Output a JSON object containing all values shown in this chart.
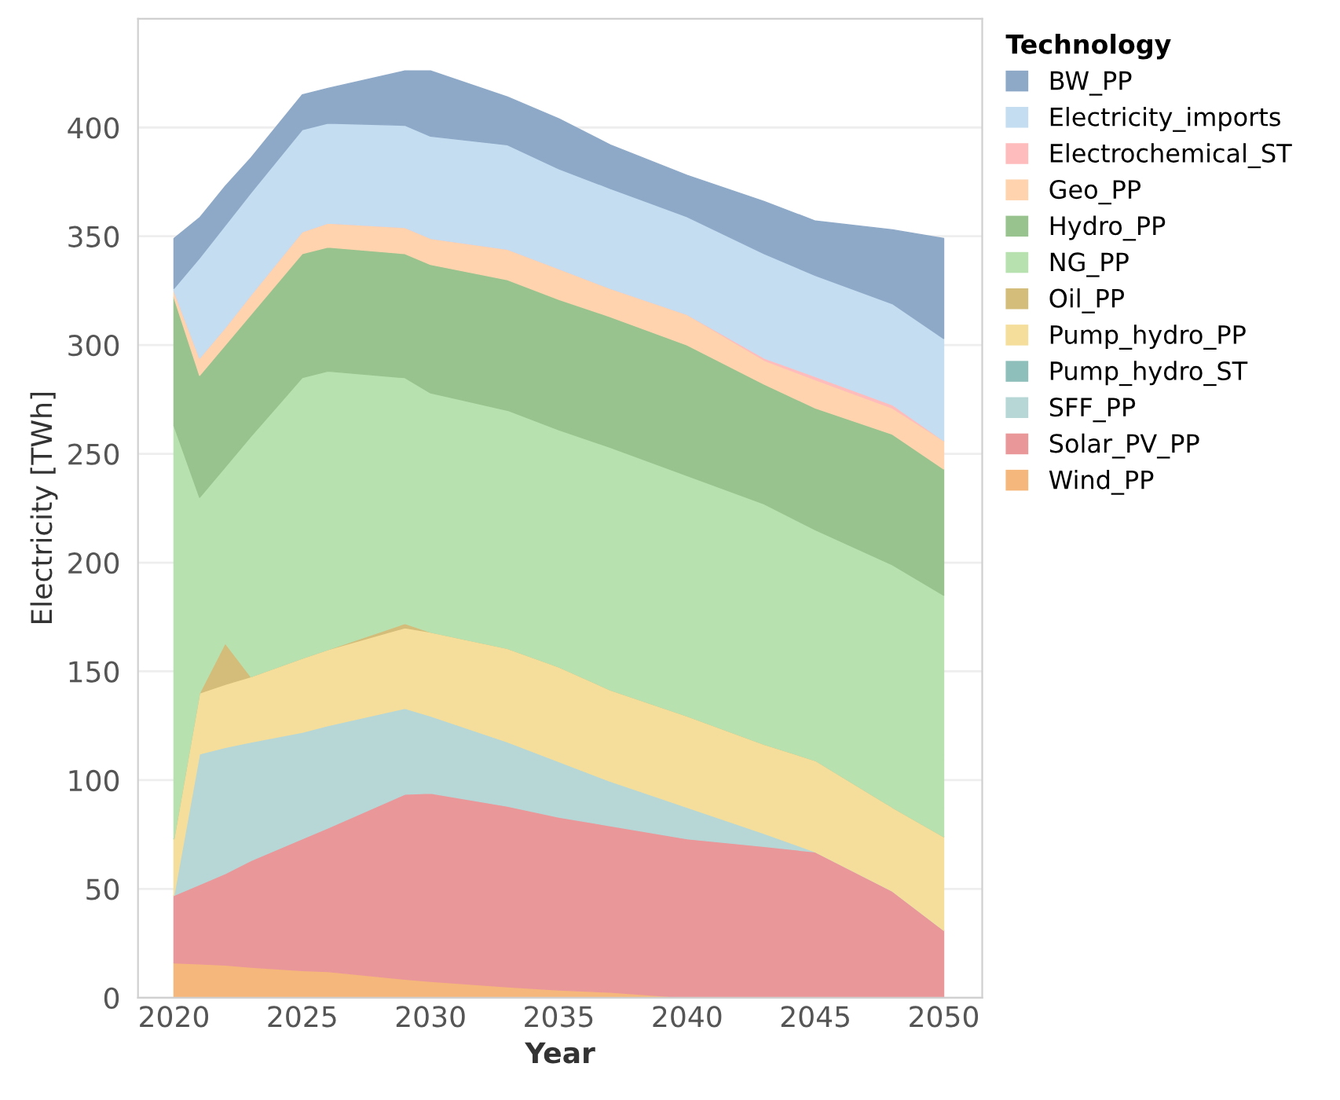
{
  "chart_data": {
    "type": "area",
    "stacked": true,
    "xlabel": "Year",
    "ylabel": "Electricity [TWh]",
    "legend_title": "Technology",
    "legend": "right",
    "grid": "y",
    "x": [
      2020,
      2021,
      2022,
      2023,
      2025,
      2026,
      2029,
      2030,
      2033,
      2035,
      2037,
      2040,
      2043,
      2045,
      2048,
      2050
    ],
    "xlim": [
      2018.6,
      2051.5
    ],
    "xticks": [
      2020,
      2025,
      2030,
      2035,
      2040,
      2045,
      2050
    ],
    "ylim": [
      0,
      450
    ],
    "yticks": [
      0,
      50,
      100,
      150,
      200,
      250,
      300,
      350,
      400
    ],
    "series": [
      {
        "name": "Wind_PP",
        "color": "#f5b77b",
        "values": [
          16,
          15.5,
          15,
          14,
          12.5,
          12,
          8.5,
          7.5,
          5,
          3.5,
          2.5,
          0,
          0,
          0,
          0,
          0
        ]
      },
      {
        "name": "Solar_PV_PP",
        "color": "#ea979a",
        "values": [
          31,
          36.5,
          42,
          49,
          60.5,
          66,
          85,
          86.5,
          83,
          79.5,
          76.5,
          73,
          69.5,
          67,
          49,
          31
        ]
      },
      {
        "name": "SFF_PP",
        "color": "#b6d7d6",
        "values": [
          0,
          60,
          58,
          54.5,
          49,
          47,
          39.5,
          35.5,
          29.5,
          25.5,
          20.5,
          14.5,
          6,
          0,
          0,
          0
        ]
      },
      {
        "name": "Pump_hydro_ST",
        "color": "#8fbfbb",
        "values": [
          null,
          null,
          null,
          null,
          null,
          null,
          null,
          null,
          null,
          null,
          null,
          null,
          null,
          null,
          null,
          null
        ]
      },
      {
        "name": "Pump_hydro_PP",
        "color": "#f5de9b",
        "values": [
          26,
          28,
          29,
          30,
          34,
          35,
          37,
          38.5,
          43,
          43.5,
          42,
          42,
          41,
          42,
          38.5,
          43
        ]
      },
      {
        "name": "Oil_PP",
        "color": "#d4bd7a",
        "values": [
          0,
          0,
          19,
          0,
          0,
          0,
          2,
          0,
          0,
          0,
          0,
          0,
          0,
          0,
          0,
          0
        ]
      },
      {
        "name": "NG_PP",
        "color": "#b8e1b0",
        "values": [
          190,
          90,
          81,
          110.5,
          129,
          128,
          113,
          110,
          109.5,
          109,
          111.5,
          110.5,
          110.5,
          106,
          111.5,
          111
        ]
      },
      {
        "name": "Hydro_PP",
        "color": "#98c38e",
        "values": [
          59,
          56,
          56,
          56,
          57,
          57,
          57,
          59,
          60,
          60,
          60,
          60,
          55,
          56,
          60,
          58
        ]
      },
      {
        "name": "Geo_PP",
        "color": "#fed3ae",
        "values": [
          3,
          8,
          8,
          9,
          10,
          11,
          12,
          12,
          14,
          14,
          13,
          14,
          11,
          13,
          12,
          13
        ]
      },
      {
        "name": "Electrochemical_ST",
        "color": "#ffbcbc",
        "values": [
          0,
          0,
          0,
          0,
          0,
          0,
          0,
          0,
          0,
          0,
          0,
          0,
          1,
          1.5,
          1.5,
          0
        ]
      },
      {
        "name": "Electricity_imports",
        "color": "#c5ddf0",
        "values": [
          1,
          46,
          47,
          47,
          47,
          46,
          47,
          47,
          48,
          46,
          46,
          45,
          48,
          46.5,
          46.5,
          47
        ]
      },
      {
        "name": "BW_PP",
        "color": "#8ea9c8",
        "values": [
          23,
          18.5,
          18,
          16,
          16,
          16,
          25,
          30,
          22,
          23,
          20,
          19,
          24,
          25,
          34,
          46
        ]
      }
    ]
  }
}
